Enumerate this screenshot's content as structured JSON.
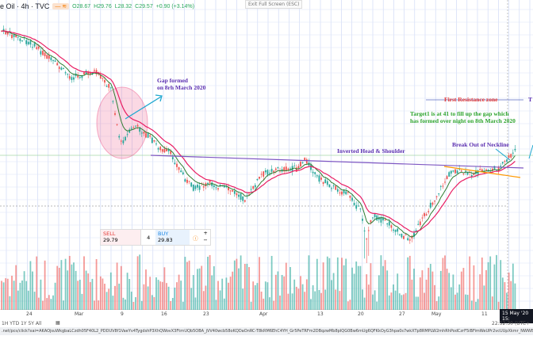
{
  "header": {
    "symbol": "e Oil · 4h · TVC",
    "badge": "— ≋",
    "open": "O28.67",
    "high": "H29.76",
    "low": "L28.32",
    "close": "C29.57",
    "change": "+0.90 (+3.14%)"
  },
  "exit_fullscreen": "Exit Full Screen (ESC)",
  "annotations": {
    "gap": [
      "Gap formed",
      "on 8rh March 2020"
    ],
    "resistance": "First Resistance zone",
    "resistance_cut": "T",
    "target": [
      "Target1 is at 41 to fill up the gap which",
      "has formed  over night on 8th March 2020"
    ],
    "breakout": "Break Out of Neckline",
    "pattern": "Inverted Head & Shoulder"
  },
  "colors": {
    "up": "#26a69a",
    "down": "#ef5350",
    "ema_fast": "#2e7d32",
    "ema_slow": "#e91e63",
    "neckline": "#7e57c2",
    "annotation_purple": "#5b2fb0",
    "annotation_green": "#2ea42e",
    "annotation_red": "#e53935",
    "arrow": "#1fa8d0"
  },
  "trade": {
    "sell_label": "SELL",
    "sell_price": "29.79",
    "quantity": "4",
    "buy_label": "BUY",
    "buy_price": "29.83",
    "plus": "+",
    "minus": "−"
  },
  "xaxis": {
    "labels": [
      "24",
      "Mar",
      "9",
      "16",
      "23",
      "Apr",
      "13",
      "20",
      "27",
      "May",
      "11"
    ],
    "cursor_label": "15 May '20",
    "cursor_cut": "15:"
  },
  "toolbar": {
    "ranges": "1H  YTD  1Y  5Y  All",
    "clock": "22:52:30 (UTC+"
  },
  "url": ".net/pcs/click?xai=AKAOjsuWkgbaLCzdh05F40L2_PDDUV8f1VaeYv4TygdshP3XhQWovX3FtrnUQb5OBA_jVV40wcb58oKQDaOnRC-T8kRM6EhC4YH_Gr5PeTRFm2DBqzwMb8pIQG0Bw6mUg6QFKkOyG3hpa0s7wkXTp8RMPLW2mhRhPodCzrF5iBFimWeUPr2vcUUpXkmr_NWWBdOWNdHB1Vm5PBYHH"
}
